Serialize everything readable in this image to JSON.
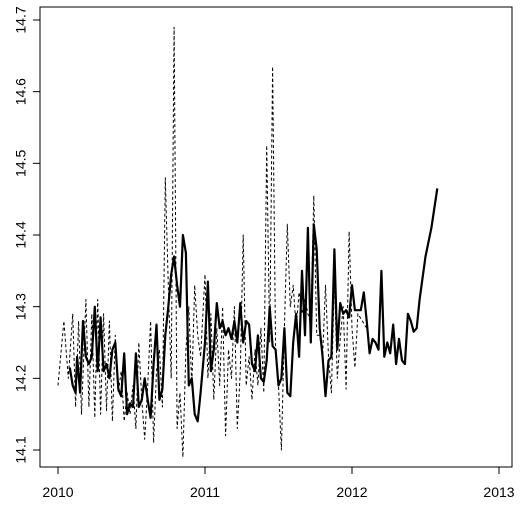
{
  "chart_data": {
    "type": "line",
    "title": "",
    "xlabel": "",
    "ylabel": "",
    "xlim": [
      2010.0,
      2012.97
    ],
    "ylim": [
      14.09,
      14.7
    ],
    "x_ticks": [
      2010,
      2011,
      2012,
      2013
    ],
    "x_tick_labels": [
      "2010",
      "2011",
      "2012",
      "2013"
    ],
    "y_ticks": [
      14.1,
      14.2,
      14.3,
      14.4,
      14.5,
      14.6,
      14.7
    ],
    "y_tick_labels": [
      "14.1",
      "14.2",
      "14.3",
      "14.4",
      "14.5",
      "14.6",
      "14.7"
    ],
    "grid": false,
    "legend": "none",
    "series": [
      {
        "style": "solid",
        "color": "#000000",
        "points": [
          [
            2010.08,
            14.215
          ],
          [
            2010.1,
            14.19
          ],
          [
            2010.12,
            14.18
          ],
          [
            2010.13,
            14.23
          ],
          [
            2010.15,
            14.18
          ],
          [
            2010.17,
            14.28
          ],
          [
            2010.19,
            14.23
          ],
          [
            2010.21,
            14.22
          ],
          [
            2010.23,
            14.23
          ],
          [
            2010.25,
            14.3
          ],
          [
            2010.27,
            14.21
          ],
          [
            2010.29,
            14.285
          ],
          [
            2010.31,
            14.21
          ],
          [
            2010.33,
            14.22
          ],
          [
            2010.35,
            14.2
          ],
          [
            2010.37,
            14.24
          ],
          [
            2010.39,
            14.25
          ],
          [
            2010.41,
            14.185
          ],
          [
            2010.43,
            14.175
          ],
          [
            2010.45,
            14.235
          ],
          [
            2010.47,
            14.15
          ],
          [
            2010.49,
            14.165
          ],
          [
            2010.51,
            14.16
          ],
          [
            2010.53,
            14.235
          ],
          [
            2010.55,
            14.16
          ],
          [
            2010.57,
            14.17
          ],
          [
            2010.59,
            14.2
          ],
          [
            2010.61,
            14.17
          ],
          [
            2010.63,
            14.145
          ],
          [
            2010.65,
            14.22
          ],
          [
            2010.67,
            14.275
          ],
          [
            2010.69,
            14.17
          ],
          [
            2010.71,
            14.185
          ],
          [
            2010.73,
            14.26
          ],
          [
            2010.75,
            14.3
          ],
          [
            2010.77,
            14.345
          ],
          [
            2010.79,
            14.37
          ],
          [
            2010.81,
            14.33
          ],
          [
            2010.83,
            14.3
          ],
          [
            2010.85,
            14.4
          ],
          [
            2010.87,
            14.375
          ],
          [
            2010.89,
            14.19
          ],
          [
            2010.91,
            14.2
          ],
          [
            2010.93,
            14.15
          ],
          [
            2010.95,
            14.14
          ],
          [
            2010.97,
            14.18
          ],
          [
            2011.0,
            14.25
          ],
          [
            2011.02,
            14.335
          ],
          [
            2011.04,
            14.21
          ],
          [
            2011.06,
            14.24
          ],
          [
            2011.08,
            14.305
          ],
          [
            2011.1,
            14.27
          ],
          [
            2011.12,
            14.28
          ],
          [
            2011.14,
            14.26
          ],
          [
            2011.16,
            14.27
          ],
          [
            2011.18,
            14.255
          ],
          [
            2011.2,
            14.28
          ],
          [
            2011.22,
            14.25
          ],
          [
            2011.24,
            14.305
          ],
          [
            2011.26,
            14.25
          ],
          [
            2011.28,
            14.28
          ],
          [
            2011.3,
            14.275
          ],
          [
            2011.32,
            14.22
          ],
          [
            2011.34,
            14.21
          ],
          [
            2011.36,
            14.26
          ],
          [
            2011.38,
            14.2
          ],
          [
            2011.4,
            14.195
          ],
          [
            2011.42,
            14.225
          ],
          [
            2011.44,
            14.3
          ],
          [
            2011.46,
            14.245
          ],
          [
            2011.48,
            14.24
          ],
          [
            2011.5,
            14.19
          ],
          [
            2011.52,
            14.2
          ],
          [
            2011.54,
            14.27
          ],
          [
            2011.56,
            14.18
          ],
          [
            2011.58,
            14.175
          ],
          [
            2011.6,
            14.25
          ],
          [
            2011.62,
            14.29
          ],
          [
            2011.64,
            14.23
          ],
          [
            2011.66,
            14.35
          ],
          [
            2011.68,
            14.26
          ],
          [
            2011.7,
            14.41
          ],
          [
            2011.72,
            14.25
          ],
          [
            2011.74,
            14.415
          ],
          [
            2011.76,
            14.38
          ],
          [
            2011.78,
            14.27
          ],
          [
            2011.8,
            14.23
          ],
          [
            2011.82,
            14.175
          ],
          [
            2011.84,
            14.225
          ],
          [
            2011.86,
            14.23
          ],
          [
            2011.88,
            14.38
          ],
          [
            2011.9,
            14.24
          ],
          [
            2011.92,
            14.305
          ],
          [
            2011.94,
            14.29
          ],
          [
            2011.96,
            14.295
          ],
          [
            2011.98,
            14.285
          ],
          [
            2012.0,
            14.33
          ],
          [
            2012.02,
            14.295
          ],
          [
            2012.04,
            14.295
          ],
          [
            2012.06,
            14.295
          ],
          [
            2012.08,
            14.32
          ],
          [
            2012.1,
            14.28
          ],
          [
            2012.12,
            14.235
          ],
          [
            2012.14,
            14.255
          ],
          [
            2012.16,
            14.25
          ],
          [
            2012.18,
            14.24
          ],
          [
            2012.2,
            14.35
          ],
          [
            2012.22,
            14.23
          ],
          [
            2012.24,
            14.25
          ],
          [
            2012.26,
            14.235
          ],
          [
            2012.28,
            14.275
          ],
          [
            2012.3,
            14.22
          ],
          [
            2012.32,
            14.255
          ],
          [
            2012.34,
            14.225
          ],
          [
            2012.36,
            14.22
          ],
          [
            2012.38,
            14.29
          ],
          [
            2012.4,
            14.28
          ],
          [
            2012.42,
            14.265
          ],
          [
            2012.44,
            14.27
          ],
          [
            2012.46,
            14.31
          ],
          [
            2012.5,
            14.37
          ],
          [
            2012.54,
            14.41
          ],
          [
            2012.58,
            14.465
          ]
        ]
      },
      {
        "style": "dashed",
        "color": "#000000",
        "points": [
          [
            2010.0,
            14.19
          ],
          [
            2010.04,
            14.28
          ],
          [
            2010.07,
            14.2
          ],
          [
            2010.1,
            14.29
          ],
          [
            2010.12,
            14.16
          ],
          [
            2010.14,
            14.28
          ],
          [
            2010.16,
            14.15
          ],
          [
            2010.19,
            14.31
          ],
          [
            2010.21,
            14.16
          ],
          [
            2010.23,
            14.29
          ],
          [
            2010.25,
            14.145
          ],
          [
            2010.27,
            14.31
          ],
          [
            2010.29,
            14.15
          ],
          [
            2010.31,
            14.29
          ],
          [
            2010.33,
            14.155
          ],
          [
            2010.35,
            14.28
          ],
          [
            2010.37,
            14.14
          ],
          [
            2010.39,
            14.26
          ],
          [
            2010.41,
            14.18
          ],
          [
            2010.43,
            14.21
          ],
          [
            2010.45,
            14.14
          ],
          [
            2010.47,
            14.18
          ],
          [
            2010.49,
            14.15
          ],
          [
            2010.51,
            14.19
          ],
          [
            2010.53,
            14.13
          ],
          [
            2010.55,
            14.25
          ],
          [
            2010.57,
            14.17
          ],
          [
            2010.59,
            14.115
          ],
          [
            2010.61,
            14.19
          ],
          [
            2010.63,
            14.28
          ],
          [
            2010.65,
            14.11
          ],
          [
            2010.67,
            14.21
          ],
          [
            2010.69,
            14.24
          ],
          [
            2010.71,
            14.16
          ],
          [
            2010.73,
            14.48
          ],
          [
            2010.75,
            14.33
          ],
          [
            2010.77,
            14.2
          ],
          [
            2010.79,
            14.69
          ],
          [
            2010.81,
            14.13
          ],
          [
            2010.83,
            14.18
          ],
          [
            2010.85,
            14.09
          ],
          [
            2010.87,
            14.24
          ],
          [
            2010.89,
            14.3
          ],
          [
            2010.91,
            14.19
          ],
          [
            2010.93,
            14.33
          ],
          [
            2010.95,
            14.26
          ],
          [
            2010.97,
            14.23
          ],
          [
            2011.0,
            14.345
          ],
          [
            2011.02,
            14.2
          ],
          [
            2011.04,
            14.29
          ],
          [
            2011.06,
            14.17
          ],
          [
            2011.08,
            14.27
          ],
          [
            2011.1,
            14.19
          ],
          [
            2011.12,
            14.3
          ],
          [
            2011.14,
            14.12
          ],
          [
            2011.16,
            14.24
          ],
          [
            2011.18,
            14.2
          ],
          [
            2011.2,
            14.3
          ],
          [
            2011.22,
            14.13
          ],
          [
            2011.24,
            14.21
          ],
          [
            2011.26,
            14.4
          ],
          [
            2011.28,
            14.19
          ],
          [
            2011.3,
            14.23
          ],
          [
            2011.32,
            14.17
          ],
          [
            2011.34,
            14.24
          ],
          [
            2011.36,
            14.19
          ],
          [
            2011.38,
            14.27
          ],
          [
            2011.4,
            14.18
          ],
          [
            2011.42,
            14.525
          ],
          [
            2011.44,
            14.25
          ],
          [
            2011.46,
            14.635
          ],
          [
            2011.48,
            14.24
          ],
          [
            2011.5,
            14.19
          ],
          [
            2011.52,
            14.1
          ],
          [
            2011.54,
            14.27
          ],
          [
            2011.56,
            14.415
          ],
          [
            2011.58,
            14.3
          ],
          [
            2011.6,
            14.33
          ],
          [
            2011.62,
            14.27
          ],
          [
            2011.64,
            14.32
          ],
          [
            2011.66,
            14.29
          ],
          [
            2011.68,
            14.31
          ],
          [
            2011.7,
            14.29
          ],
          [
            2011.72,
            14.275
          ],
          [
            2011.74,
            14.455
          ],
          [
            2011.76,
            14.26
          ],
          [
            2011.78,
            14.26
          ],
          [
            2011.8,
            14.23
          ],
          [
            2011.82,
            14.33
          ],
          [
            2011.84,
            14.23
          ],
          [
            2011.86,
            14.18
          ],
          [
            2011.88,
            14.34
          ],
          [
            2011.9,
            14.2
          ],
          [
            2011.92,
            14.255
          ],
          [
            2011.94,
            14.3
          ],
          [
            2011.96,
            14.185
          ],
          [
            2011.98,
            14.405
          ],
          [
            2012.0,
            14.27
          ],
          [
            2012.02,
            14.215
          ],
          [
            2012.04,
            14.29
          ],
          [
            2012.07,
            14.28
          ],
          [
            2012.1,
            14.27
          ]
        ]
      }
    ]
  }
}
